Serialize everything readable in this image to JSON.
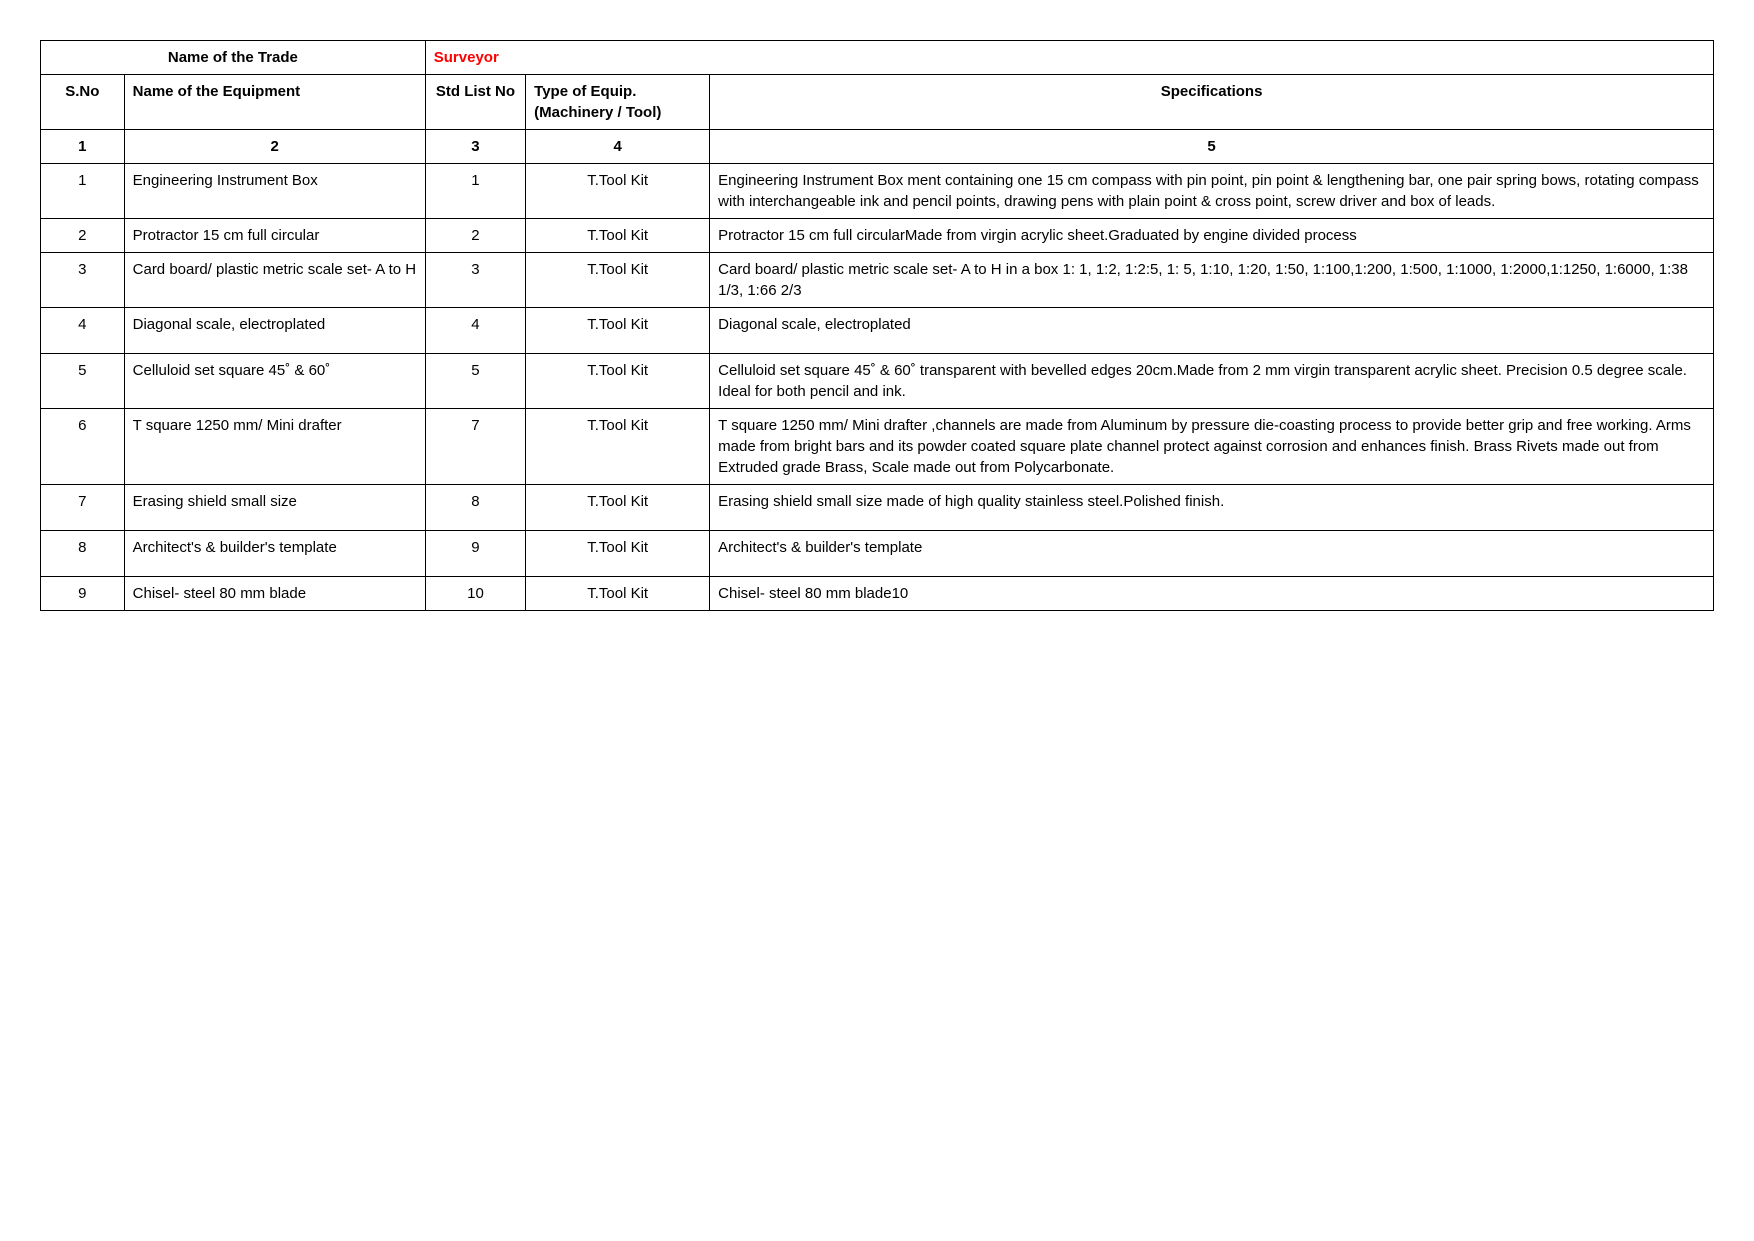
{
  "trade": {
    "label": "Name of the Trade",
    "value": "Surveyor",
    "value_color": "#ff0000"
  },
  "headers": {
    "sno": "S.No",
    "name": "Name of the Equipment",
    "std": "Std List No",
    "type": "Type of Equip. (Machinery / Tool)",
    "spec": "Specifications"
  },
  "numrow": {
    "c1": "1",
    "c2": "2",
    "c3": "3",
    "c4": "4",
    "c5": "5"
  },
  "rows": [
    {
      "sno": "1",
      "name": "Engineering Instrument Box",
      "std": "1",
      "type": "T.Tool Kit",
      "spec": "Engineering Instrument Box ment containing one 15 cm compass with  pin point, pin point & lengthening bar, one pair spring bows, rotating compass with interchangeable ink and pencil points, drawing pens with plain point & cross point, screw  driver and box of leads."
    },
    {
      "sno": "2",
      "name": "Protractor 15 cm full circular",
      "std": "2",
      "type": "T.Tool Kit",
      "spec": "Protractor 15 cm full circularMade from virgin acrylic sheet.Graduated by engine divided process"
    },
    {
      "sno": "3",
      "name": "Card board/ plastic metric scale set- A to H",
      "std": "3",
      "type": "T.Tool Kit",
      "spec": "Card board/ plastic metric scale set- A to H in a box 1: 1, 1:2, 1:2:5, 1: 5, 1:10, 1:20, 1:50, 1:100,1:200, 1:500, 1:1000, 1:2000,1:1250, 1:6000, 1:38 1/3, 1:66 2/3"
    },
    {
      "sno": "4",
      "name": "Diagonal scale, electroplated",
      "std": "4",
      "type": "T.Tool Kit",
      "spec": "Diagonal scale, electroplated"
    },
    {
      "sno": "5",
      "name": "Celluloid set square 45˚ & 60˚",
      "std": "5",
      "type": "T.Tool Kit",
      "spec": "Celluloid set square 45˚ & 60˚ transparent with bevelled edges 20cm.Made from 2 mm virgin transparent acrylic sheet. Precision 0.5 degree scale. Ideal for both pencil and ink."
    },
    {
      "sno": "6",
      "name": "T square 1250 mm/ Mini drafter",
      "std": "7",
      "type": "T.Tool Kit",
      "spec": "T square 1250 mm/ Mini drafter ,channels are made from Aluminum by pressure die-coasting process to provide better grip and free working.  Arms made from bright bars and its powder coated square plate channel protect against corrosion and enhances finish. Brass Rivets made out from Extruded grade Brass, Scale made out from Polycarbonate."
    },
    {
      "sno": "7",
      "name": "Erasing shield small size",
      "std": "8",
      "type": "T.Tool Kit",
      "spec": "Erasing shield small size made of high quality stainless steel.Polished finish."
    },
    {
      "sno": "8",
      "name": "Architect's & builder's template",
      "std": "9",
      "type": "T.Tool Kit",
      "spec": "Architect's & builder's template"
    },
    {
      "sno": "9",
      "name": "Chisel- steel 80 mm blade",
      "std": "10",
      "type": "T.Tool Kit",
      "spec": "Chisel- steel 80 mm blade10"
    }
  ],
  "row_heights_extra_padding": {
    "4": "18px",
    "7": "18px",
    "8": "18px"
  }
}
